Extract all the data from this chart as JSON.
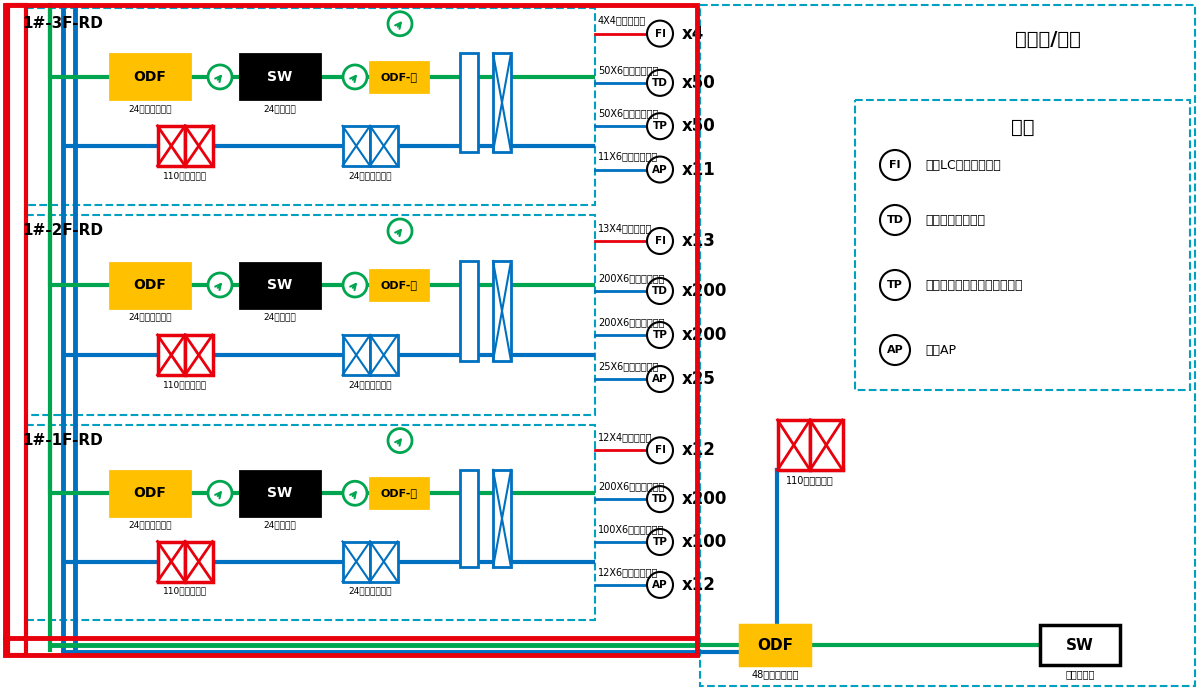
{
  "floors_labels": [
    "1#-3F-RD",
    "1#-2F-RD",
    "1#-1F-RD"
  ],
  "floor_cables": [
    [
      {
        "label": "4X4芯单模光缆",
        "type": "FI",
        "count": "x4",
        "line_color": "red"
      },
      {
        "label": "50X6类非屏蔽网线",
        "type": "TD",
        "count": "x50",
        "line_color": "blue"
      },
      {
        "label": "50X6类非屏蔽网线",
        "type": "TP",
        "count": "x50",
        "line_color": "blue"
      },
      {
        "label": "11X6类非屏蔽网线",
        "type": "AP",
        "count": "x11",
        "line_color": "blue"
      }
    ],
    [
      {
        "label": "13X4芯单模光缆",
        "type": "FI",
        "count": "x13",
        "line_color": "red"
      },
      {
        "label": "200X6类非屏蔽网线",
        "type": "TD",
        "count": "x200",
        "line_color": "blue"
      },
      {
        "label": "200X6类非屏蔽网线",
        "type": "TP",
        "count": "x200",
        "line_color": "blue"
      },
      {
        "label": "25X6类非屏蔽网线",
        "type": "AP",
        "count": "x25",
        "line_color": "blue"
      }
    ],
    [
      {
        "label": "12X4芯单模光缆",
        "type": "FI",
        "count": "x12",
        "line_color": "red"
      },
      {
        "label": "200X6类非屏蔽网线",
        "type": "TD",
        "count": "x200",
        "line_color": "blue"
      },
      {
        "label": "100X6类非屏蔽网线",
        "type": "TP",
        "count": "x100",
        "line_color": "blue"
      },
      {
        "label": "12X6类非屏蔽网线",
        "type": "AP",
        "count": "x12",
        "line_color": "blue"
      }
    ]
  ],
  "legend_items": [
    {
      "type": "FI",
      "desc": "单口LC光纤信息面板"
    },
    {
      "type": "TD",
      "desc": "单孔数据信息面板"
    },
    {
      "type": "TP",
      "desc": "单孔语音信息面板（同语音）"
    },
    {
      "type": "AP",
      "desc": "无线AP"
    }
  ],
  "colors": {
    "red": "#e8000c",
    "green": "#00a550",
    "blue": "#0070c0",
    "orange": "#ffc000",
    "black": "#000000",
    "dash": "#00a0c0",
    "white": "#ffffff"
  },
  "fig_w": 12.0,
  "fig_h": 6.91,
  "dpi": 100
}
